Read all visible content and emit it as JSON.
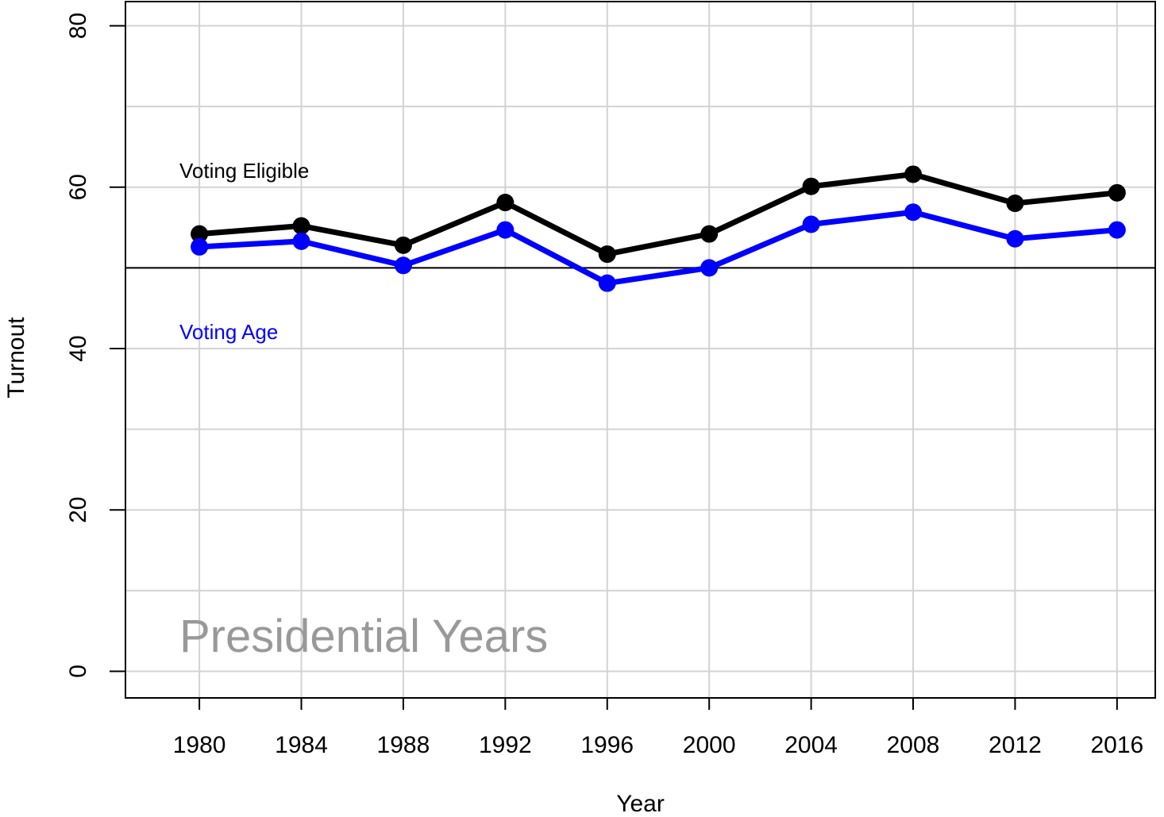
{
  "chart_data": {
    "type": "line",
    "title": "",
    "xlabel": "Year",
    "ylabel": "Turnout",
    "x": [
      1980,
      1984,
      1988,
      1992,
      1996,
      2000,
      2004,
      2008,
      2012,
      2016
    ],
    "xlim": [
      1977.1,
      2017.5
    ],
    "ylim": [
      -3.3,
      83
    ],
    "x_ticks": [
      1980,
      1984,
      1988,
      1992,
      1996,
      2000,
      2004,
      2008,
      2012,
      2016
    ],
    "y_ticks": [
      0,
      20,
      40,
      60,
      80
    ],
    "grid": true,
    "reference_line": 50,
    "annotation": "Presidential Years",
    "series": [
      {
        "name": "Voting Eligible",
        "color": "#000000",
        "values": [
          54.2,
          55.2,
          52.8,
          58.1,
          51.7,
          54.2,
          60.1,
          61.6,
          58.0,
          59.3
        ]
      },
      {
        "name": "Voting Age",
        "color": "#0000ff",
        "values": [
          52.6,
          53.3,
          50.3,
          54.7,
          48.1,
          50.0,
          55.4,
          56.9,
          53.6,
          54.7
        ]
      }
    ],
    "colors": {
      "grid": "#d3d3d3",
      "annotation": "#999999",
      "axis": "#000000"
    }
  }
}
